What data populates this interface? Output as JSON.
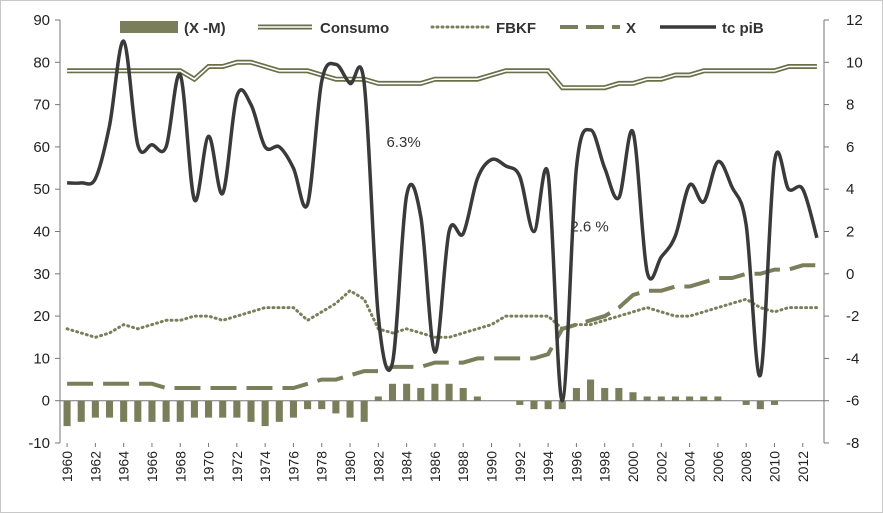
{
  "chart_data": {
    "type": "line",
    "x": [
      1960,
      1961,
      1962,
      1963,
      1964,
      1965,
      1966,
      1967,
      1968,
      1969,
      1970,
      1971,
      1972,
      1973,
      1974,
      1975,
      1976,
      1977,
      1978,
      1979,
      1980,
      1981,
      1982,
      1983,
      1984,
      1985,
      1986,
      1987,
      1988,
      1989,
      1990,
      1991,
      1992,
      1993,
      1994,
      1995,
      1996,
      1997,
      1998,
      1999,
      2000,
      2001,
      2002,
      2003,
      2004,
      2005,
      2006,
      2007,
      2008,
      2009,
      2010,
      2011,
      2012,
      2013
    ],
    "xlim": [
      1959.5,
      2013.5
    ],
    "x_tick_labels": [
      "1960",
      "1962",
      "1964",
      "1966",
      "1968",
      "1970",
      "1972",
      "1974",
      "1976",
      "1978",
      "1980",
      "1982",
      "1984",
      "1986",
      "1988",
      "1990",
      "1992",
      "1994",
      "1996",
      "1998",
      "2000",
      "2002",
      "2004",
      "2006",
      "2008",
      "2010",
      "2012"
    ],
    "y_left": {
      "min": -10,
      "max": 90,
      "ticks": [
        "90",
        "80",
        "70",
        "60",
        "50",
        "40",
        "30",
        "20",
        "10",
        "0",
        "-10"
      ]
    },
    "y_right": {
      "min": -8,
      "max": 12,
      "ticks": [
        "12",
        "10",
        "8",
        "6",
        "4",
        "2",
        "0",
        "-2",
        "-4",
        "-6",
        "-8"
      ]
    },
    "series": [
      {
        "name": "(X -M)",
        "kind": "bar",
        "axis": "left",
        "color": "#7b7e5a",
        "values": [
          -6,
          -5,
          -4,
          -4,
          -5,
          -5,
          -5,
          -5,
          -5,
          -4,
          -4,
          -4,
          -4,
          -5,
          -6,
          -5,
          -4,
          -2,
          -2,
          -3,
          -4,
          -5,
          1,
          4,
          4,
          3,
          4,
          4,
          3,
          1,
          0,
          0,
          -1,
          -2,
          -2,
          -2,
          3,
          5,
          3,
          3,
          2,
          1,
          1,
          1,
          1,
          1,
          1,
          0,
          -1,
          -2,
          -1,
          0,
          0,
          0
        ]
      },
      {
        "name": "Consumo",
        "kind": "double-line",
        "axis": "left",
        "color": "#6a6f4a",
        "values": [
          78,
          78,
          78,
          78,
          78,
          78,
          78,
          78,
          78,
          76,
          79,
          79,
          80,
          80,
          79,
          78,
          78,
          78,
          77,
          76,
          76,
          76,
          75,
          75,
          75,
          75,
          76,
          76,
          76,
          76,
          77,
          78,
          78,
          78,
          78,
          74,
          74,
          74,
          74,
          75,
          75,
          76,
          76,
          77,
          77,
          78,
          78,
          78,
          78,
          78,
          78,
          79,
          79,
          79
        ]
      },
      {
        "name": "FBKF",
        "kind": "dotted",
        "axis": "left",
        "color": "#7b7e5a",
        "values": [
          17,
          16,
          15,
          16,
          18,
          17,
          18,
          19,
          19,
          20,
          20,
          19,
          20,
          21,
          22,
          22,
          22,
          19,
          21,
          23,
          26,
          24,
          17,
          16,
          17,
          16,
          15,
          15,
          16,
          17,
          18,
          20,
          20,
          20,
          20,
          17,
          18,
          18,
          19,
          20,
          21,
          22,
          21,
          20,
          20,
          21,
          22,
          23,
          24,
          22,
          21,
          22,
          22,
          22
        ]
      },
      {
        "name": "X",
        "kind": "dashed",
        "axis": "left",
        "color": "#7b7e5a",
        "values": [
          4,
          4,
          4,
          4,
          4,
          4,
          4,
          3,
          3,
          3,
          3,
          3,
          3,
          3,
          3,
          3,
          3,
          4,
          5,
          5,
          6,
          7,
          7,
          8,
          8,
          8,
          9,
          9,
          9,
          10,
          10,
          10,
          10,
          10,
          11,
          17,
          18,
          19,
          20,
          22,
          25,
          26,
          26,
          27,
          27,
          28,
          29,
          29,
          30,
          30,
          31,
          31,
          32,
          32
        ]
      },
      {
        "name": "tc piB",
        "kind": "line",
        "axis": "right",
        "color": "#3a3a3a",
        "values": [
          4.3,
          4.3,
          4.5,
          7.0,
          11.0,
          6.1,
          6.1,
          6.0,
          9.4,
          3.5,
          6.5,
          3.8,
          8.4,
          8.0,
          6.0,
          6.0,
          5.0,
          3.3,
          9.1,
          9.9,
          9.0,
          9.0,
          -2.0,
          -4.2,
          3.7,
          2.7,
          -3.7,
          2.0,
          1.9,
          4.5,
          5.4,
          5.1,
          4.6,
          2.0,
          4.7,
          -6.0,
          5.0,
          6.8,
          5.0,
          3.6,
          6.7,
          0.1,
          0.8,
          1.8,
          4.2,
          3.4,
          5.3,
          4.1,
          2.3,
          -4.8,
          5.3,
          4.0,
          4.0,
          1.7
        ]
      }
    ],
    "legend": {
      "position": "top",
      "entries": [
        "(X -M)",
        "Consumo",
        "FBKF",
        "X",
        "tc piB"
      ]
    },
    "annotations": [
      {
        "text": "6.3%",
        "x": 1983,
        "y_left": 60
      },
      {
        "text": "2.6 %",
        "x": 1996,
        "y_left": 40
      }
    ],
    "grid": false
  }
}
